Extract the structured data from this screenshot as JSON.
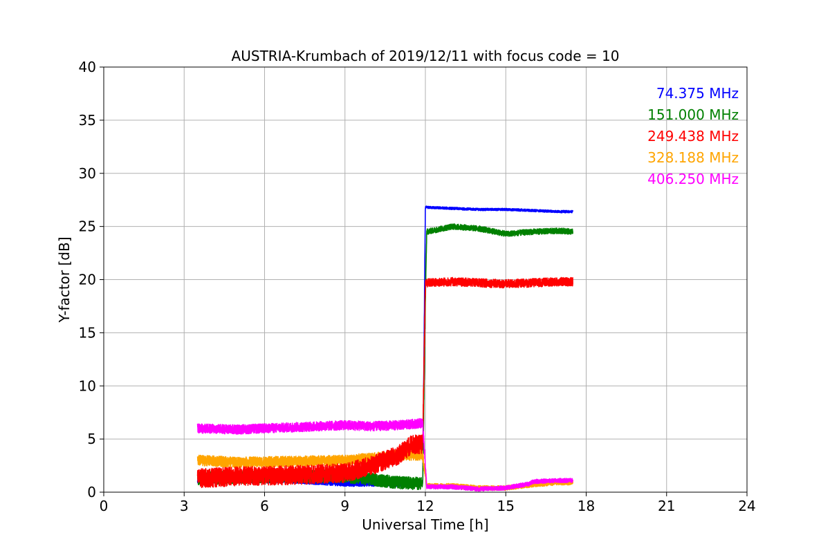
{
  "chart_data": {
    "type": "line",
    "title": "AUSTRIA-Krumbach of 2019/12/11 with focus code = 10",
    "xlabel": "Universal Time [h]",
    "ylabel": "Y-factor [dB]",
    "xlim": [
      0,
      24
    ],
    "ylim": [
      0,
      40
    ],
    "xticks": [
      0,
      3,
      6,
      9,
      12,
      15,
      18,
      21,
      24
    ],
    "yticks": [
      0,
      5,
      10,
      15,
      20,
      25,
      30,
      35,
      40
    ],
    "grid": true,
    "legend_position": "top-right",
    "series": [
      {
        "name": "74.375 MHz",
        "color": "#0000ff",
        "noise": 0.25,
        "x": [
          3.5,
          5,
          7,
          9,
          10,
          11,
          11.9,
          12.0,
          12.05,
          13,
          14,
          15,
          16,
          17,
          17.5
        ],
        "y": [
          1.0,
          1.1,
          1.1,
          0.8,
          0.8,
          0.8,
          0.8,
          26.8,
          26.8,
          26.7,
          26.6,
          26.6,
          26.5,
          26.4,
          26.4
        ]
      },
      {
        "name": "151.000 MHz",
        "color": "#008000",
        "noise": 0.6,
        "x": [
          3.5,
          5,
          7,
          9,
          10,
          11,
          11.9,
          12.0,
          12.05,
          13,
          14,
          15,
          16,
          17,
          17.5
        ],
        "y": [
          1.3,
          1.4,
          1.5,
          1.5,
          1.2,
          0.9,
          0.8,
          18.0,
          24.5,
          25.0,
          24.8,
          24.3,
          24.5,
          24.6,
          24.5
        ]
      },
      {
        "name": "249.438 MHz",
        "color": "#ff0000",
        "noise": 0.9,
        "x": [
          3.5,
          5,
          7,
          9,
          10,
          11,
          11.5,
          11.9,
          12.0,
          12.05,
          13,
          14,
          15,
          16,
          17,
          17.5
        ],
        "y": [
          1.3,
          1.5,
          1.6,
          1.8,
          2.5,
          3.5,
          4.5,
          4.5,
          19.6,
          19.7,
          19.8,
          19.7,
          19.6,
          19.7,
          19.8,
          19.8
        ]
      },
      {
        "name": "328.188 MHz",
        "color": "#ffa500",
        "noise": 0.5,
        "x": [
          3.5,
          5,
          7,
          9,
          10,
          11,
          11.9,
          12.05,
          13,
          14,
          15,
          16,
          17,
          17.5
        ],
        "y": [
          3.0,
          2.8,
          2.9,
          3.0,
          3.2,
          3.5,
          3.5,
          0.6,
          0.6,
          0.4,
          0.4,
          0.7,
          0.9,
          0.9
        ]
      },
      {
        "name": "406.250 MHz",
        "color": "#ff00ff",
        "noise": 0.45,
        "x": [
          3.5,
          5,
          7,
          9,
          10,
          11,
          11.9,
          12.05,
          13,
          14,
          15,
          15.9,
          16.0,
          17,
          17.5
        ],
        "y": [
          6.0,
          5.9,
          6.1,
          6.3,
          6.2,
          6.3,
          6.5,
          0.5,
          0.5,
          0.3,
          0.4,
          0.8,
          1.0,
          1.1,
          1.1
        ]
      }
    ]
  }
}
